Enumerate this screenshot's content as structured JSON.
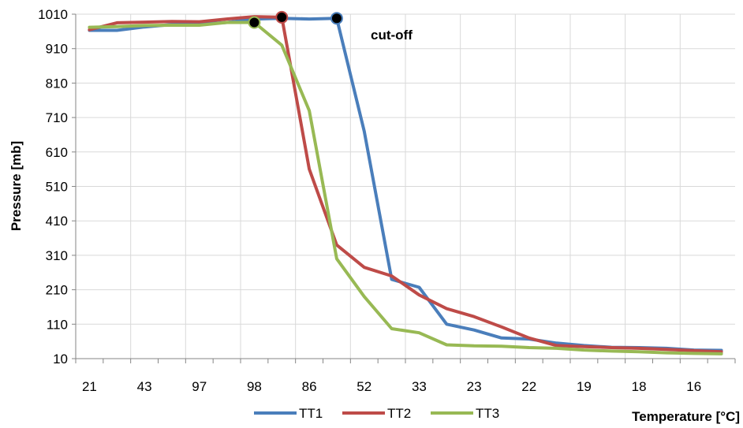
{
  "chart_data": {
    "type": "line",
    "title": "",
    "xlabel": "Temperature [°C]",
    "ylabel": "Pressure [mb]",
    "ylim": [
      10,
      1010
    ],
    "y_ticks": [
      10,
      110,
      210,
      310,
      410,
      510,
      610,
      710,
      810,
      910,
      1010
    ],
    "x_tick_labels": [
      "21",
      "43",
      "97",
      "98",
      "86",
      "52",
      "33",
      "23",
      "22",
      "19",
      "18",
      "16"
    ],
    "x_categories": 24,
    "grid": true,
    "legend": "bottom",
    "annotation": {
      "text": "cut-off"
    },
    "series": [
      {
        "name": "TT1",
        "color": "#4A7EBB",
        "values": [
          963,
          963,
          973,
          980,
          981,
          986,
          996,
          998,
          996,
          998,
          670,
          240,
          217,
          110,
          93,
          70,
          67,
          55,
          48,
          43,
          42,
          40,
          35,
          34
        ],
        "marker_index": 9
      },
      {
        "name": "TT2",
        "color": "#BE4B48",
        "values": [
          965,
          985,
          987,
          989,
          988,
          996,
          1003,
          1001,
          560,
          340,
          275,
          250,
          195,
          155,
          132,
          102,
          70,
          48,
          45,
          42,
          40,
          37,
          33,
          30
        ],
        "marker_index": 7
      },
      {
        "name": "TT3",
        "color": "#98B954",
        "values": [
          972,
          974,
          977,
          978,
          978,
          986,
          986,
          920,
          730,
          300,
          190,
          97,
          85,
          50,
          47,
          46,
          42,
          40,
          35,
          32,
          30,
          27,
          25,
          24
        ],
        "marker_index": 6
      }
    ]
  }
}
